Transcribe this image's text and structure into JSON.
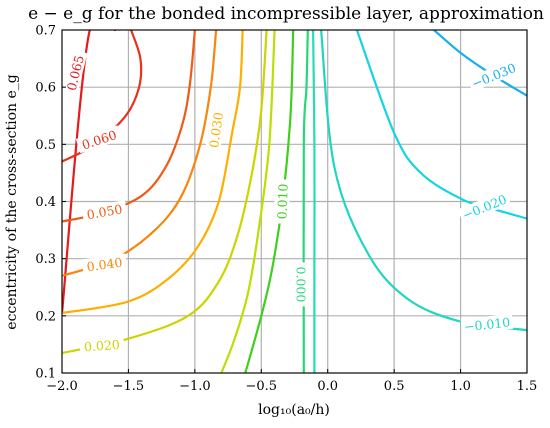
{
  "chart_data": {
    "type": "contour",
    "title": "e − e_g for the bonded incompressible layer, approximation",
    "xlabel": "log₁₀(a₀/h)",
    "ylabel": "eccentricity of the cross-section e_g",
    "xlim": [
      -2.0,
      1.5
    ],
    "ylim": [
      0.1,
      0.7
    ],
    "xticks": [
      "−2.0",
      "−1.5",
      "−1.0",
      "−0.5",
      "0.0",
      "0.5",
      "1.0",
      "1.5"
    ],
    "yticks": [
      "0.1",
      "0.2",
      "0.3",
      "0.4",
      "0.5",
      "0.6",
      "0.7"
    ],
    "grid": true,
    "levels": [
      {
        "label": "0.065",
        "color": "#e41a1c",
        "label_at": [
          -1.9,
          0.625
        ],
        "label_rot": -76,
        "points": [
          [
            -2.0,
            0.205
          ],
          [
            -1.8,
            0.69
          ],
          [
            -1.6,
            0.7
          ]
        ]
      },
      {
        "label": "0.060",
        "color": "#e8331c",
        "label_at": [
          -1.72,
          0.508
        ],
        "label_rot": -18,
        "points": [
          [
            -2.0,
            0.47
          ],
          [
            -1.75,
            0.5
          ],
          [
            -1.52,
            0.55
          ],
          [
            -1.42,
            0.6
          ],
          [
            -1.41,
            0.65
          ],
          [
            -1.48,
            0.7
          ]
        ]
      },
      {
        "label": "0.050",
        "color": "#f05a14",
        "label_at": [
          -1.68,
          0.382
        ],
        "label_rot": -10,
        "points": [
          [
            -2.0,
            0.365
          ],
          [
            -1.7,
            0.38
          ],
          [
            -1.4,
            0.41
          ],
          [
            -1.22,
            0.46
          ],
          [
            -1.1,
            0.53
          ],
          [
            -1.04,
            0.6
          ],
          [
            -1.0,
            0.7
          ]
        ]
      },
      {
        "label": "0.040",
        "color": "#f9860c",
        "label_at": [
          -1.68,
          0.29
        ],
        "label_rot": -8,
        "points": [
          [
            -2.0,
            0.27
          ],
          [
            -1.6,
            0.3
          ],
          [
            -1.3,
            0.35
          ],
          [
            -1.1,
            0.41
          ],
          [
            -0.96,
            0.5
          ],
          [
            -0.88,
            0.6
          ],
          [
            -0.84,
            0.7
          ]
        ]
      },
      {
        "label": "0.030",
        "color": "#ffae00",
        "label_at": [
          -0.84,
          0.525
        ],
        "label_rot": -82,
        "points": [
          [
            -2.0,
            0.205
          ],
          [
            -1.5,
            0.225
          ],
          [
            -1.2,
            0.265
          ],
          [
            -0.98,
            0.32
          ],
          [
            -0.82,
            0.4
          ],
          [
            -0.72,
            0.52
          ],
          [
            -0.66,
            0.6
          ],
          [
            -0.64,
            0.7
          ]
        ]
      },
      {
        "label": "0.020",
        "color": "#cdd400",
        "label_at": [
          -1.7,
          0.148
        ],
        "label_rot": -4,
        "points": [
          [
            -2.0,
            0.135
          ],
          [
            -1.5,
            0.16
          ],
          [
            -1.05,
            0.2
          ],
          [
            -0.82,
            0.26
          ],
          [
            -0.68,
            0.34
          ],
          [
            -0.57,
            0.45
          ],
          [
            -0.5,
            0.56
          ],
          [
            -0.46,
            0.7
          ]
        ]
      },
      {
        "label": "",
        "color": "#b9e000",
        "label_at": null,
        "label_rot": 0,
        "points": [
          [
            -0.8,
            0.1
          ],
          [
            -0.7,
            0.16
          ],
          [
            -0.6,
            0.24
          ],
          [
            -0.52,
            0.35
          ],
          [
            -0.44,
            0.5
          ],
          [
            -0.4,
            0.7
          ]
        ]
      },
      {
        "label": "0.010",
        "color": "#3fd01c",
        "label_at": [
          -0.34,
          0.4
        ],
        "label_rot": -88,
        "points": [
          [
            -0.62,
            0.1
          ],
          [
            -0.5,
            0.2
          ],
          [
            -0.42,
            0.28
          ],
          [
            -0.34,
            0.4
          ],
          [
            -0.28,
            0.55
          ],
          [
            -0.26,
            0.7
          ]
        ]
      },
      {
        "label": "0.000",
        "color": "#24d87a",
        "label_at": [
          -0.2,
          0.255
        ],
        "label_rot": 90,
        "points": [
          [
            -0.18,
            0.1
          ],
          [
            -0.18,
            0.5
          ],
          [
            -0.16,
            0.6
          ],
          [
            -0.15,
            0.7
          ]
        ]
      },
      {
        "label": "",
        "color": "#26dcb4",
        "label_at": null,
        "label_rot": 0,
        "points": [
          [
            -0.11,
            0.7
          ],
          [
            -0.1,
            0.5
          ],
          [
            -0.1,
            0.3
          ],
          [
            -0.1,
            0.1
          ]
        ]
      },
      {
        "label": "−0.010",
        "color": "#20d6c2",
        "label_at": [
          1.2,
          0.185
        ],
        "label_rot": -6,
        "points": [
          [
            -0.05,
            0.7
          ],
          [
            0.05,
            0.46
          ],
          [
            0.3,
            0.31
          ],
          [
            0.6,
            0.23
          ],
          [
            1.0,
            0.19
          ],
          [
            1.5,
            0.175
          ]
        ]
      },
      {
        "label": "−0.020",
        "color": "#14d4e2",
        "label_at": [
          1.18,
          0.39
        ],
        "label_rot": -22,
        "points": [
          [
            0.22,
            0.7
          ],
          [
            0.5,
            0.52
          ],
          [
            0.7,
            0.45
          ],
          [
            1.0,
            0.405
          ],
          [
            1.2,
            0.39
          ],
          [
            1.5,
            0.37
          ]
        ]
      },
      {
        "label": "−0.030",
        "color": "#18b0ea",
        "label_at": [
          1.25,
          0.62
        ],
        "label_rot": -22,
        "points": [
          [
            0.8,
            0.7
          ],
          [
            1.0,
            0.66
          ],
          [
            1.25,
            0.62
          ],
          [
            1.5,
            0.585
          ]
        ]
      }
    ]
  }
}
